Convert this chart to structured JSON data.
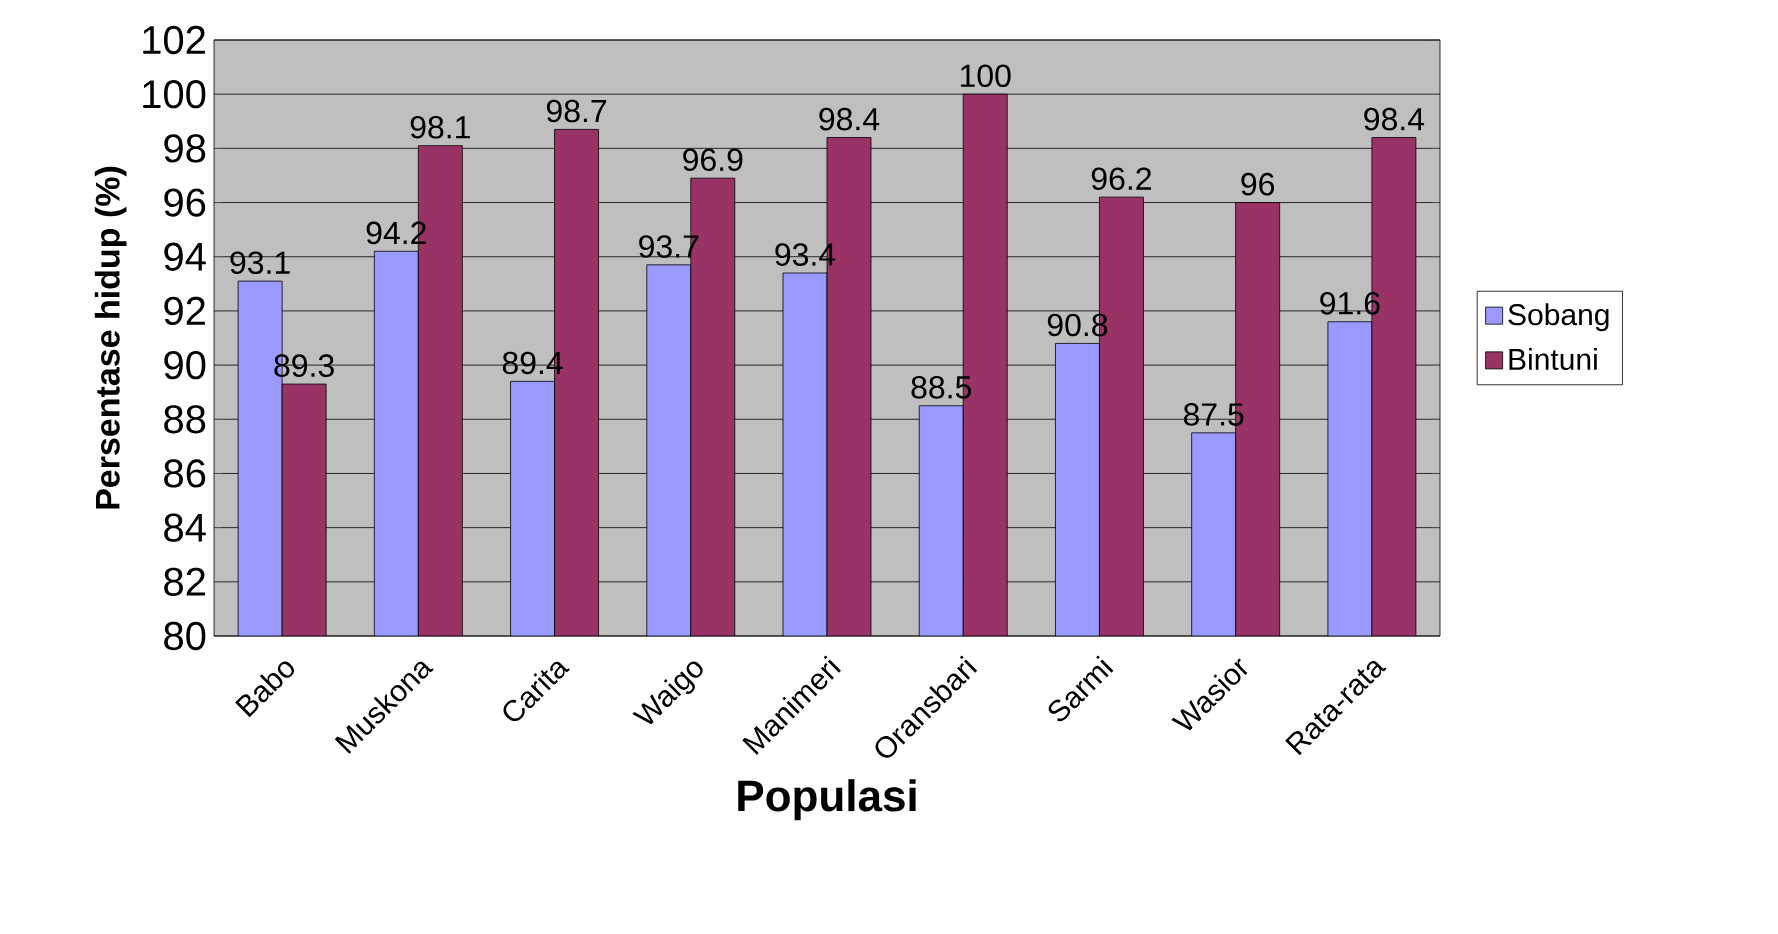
{
  "chart_data": {
    "type": "bar",
    "xlabel": "Populasi",
    "ylabel": "Persentase hidup (%)",
    "categories": [
      "Babo",
      "Muskona",
      "Carita",
      "Waigo",
      "Manimeri",
      "Oransbari",
      "Sarmi",
      "Wasior",
      "Rata-rata"
    ],
    "series": [
      {
        "name": "Sobang",
        "color": "#9999ff",
        "values": [
          93.1,
          94.2,
          89.4,
          93.7,
          93.4,
          88.5,
          90.8,
          87.5,
          91.6
        ]
      },
      {
        "name": "Bintuni",
        "color": "#993366",
        "values": [
          89.3,
          98.1,
          98.7,
          96.9,
          98.4,
          100,
          96.2,
          96,
          98.4
        ]
      }
    ],
    "ylim": [
      80,
      102
    ],
    "yticks": [
      80,
      82,
      84,
      86,
      88,
      90,
      92,
      94,
      96,
      98,
      100,
      102
    ],
    "grid": "y",
    "legend": "right",
    "data_labels": true
  }
}
